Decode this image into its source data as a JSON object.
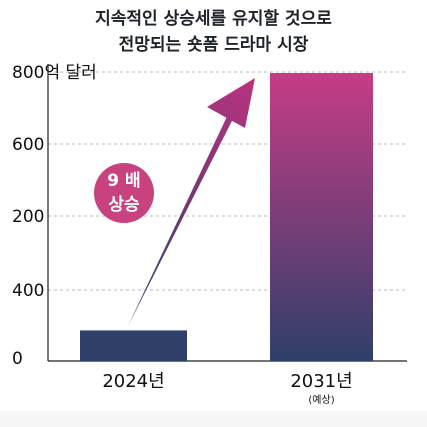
{
  "title_lines": [
    "지속적인 상승세를 유지할 것으로",
    "전망되는 숏폼 드라마 시장"
  ],
  "colors": {
    "bar_navy": "#2f3f6a",
    "bar_top": "#c73c86",
    "arrow_tip": "#b8337f",
    "badge": "#c8427f",
    "title": "#1e2229"
  },
  "chart_data": {
    "type": "bar",
    "categories": [
      "2024년",
      "2031년"
    ],
    "category_notes": [
      "",
      "(예상)"
    ],
    "values": [
      85,
      800
    ],
    "y_tick_labels": [
      "0",
      "400",
      "200",
      "600",
      "800억 달러"
    ],
    "grid": true,
    "annotation": {
      "lines": [
        "9 배",
        "상승"
      ],
      "arrow": "from 2024 bar up-right toward 2031 bar"
    }
  }
}
